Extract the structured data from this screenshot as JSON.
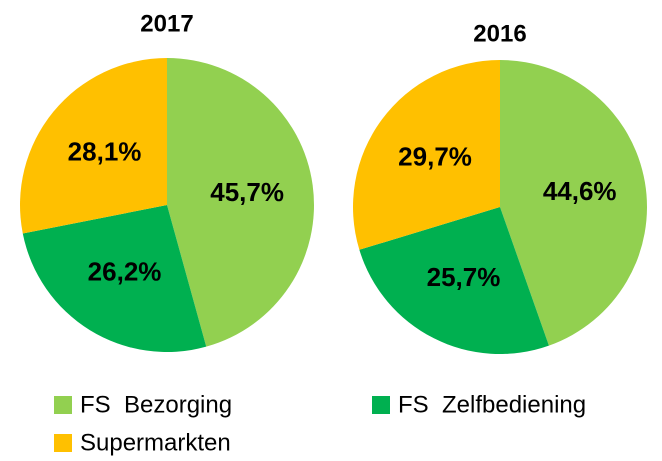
{
  "chart_data": [
    {
      "type": "pie",
      "title": "2017",
      "categories": [
        "FS  Bezorging",
        "FS  Zelfbediening",
        "Supermarkten"
      ],
      "values": [
        45.7,
        26.2,
        28.1
      ],
      "value_labels": [
        "45,7%",
        "26,2%",
        "28,1%"
      ],
      "colors": [
        "#92d050",
        "#00b050",
        "#ffc000"
      ]
    },
    {
      "type": "pie",
      "title": "2016",
      "categories": [
        "FS  Bezorging",
        "FS  Zelfbediening",
        "Supermarkten"
      ],
      "values": [
        44.6,
        25.7,
        29.7
      ],
      "value_labels": [
        "44,6%",
        "25,7%",
        "29,7%"
      ],
      "colors": [
        "#92d050",
        "#00b050",
        "#ffc000"
      ]
    }
  ]
}
